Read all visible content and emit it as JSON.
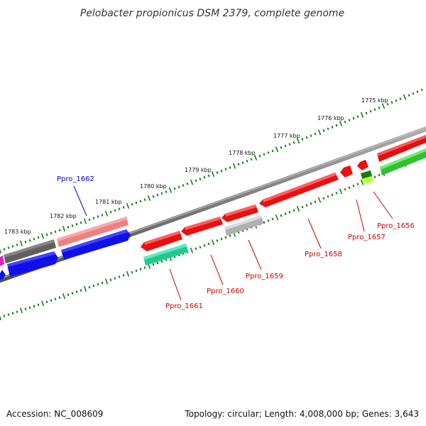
{
  "title": "Pelobacter propionicus DSM 2379, complete genome",
  "footer": {
    "accession": "Accession: NC_008609",
    "summary": "Topology: circular; Length: 4,008,000 bp; Genes: 3,643"
  },
  "colors": {
    "backbone": "#808080",
    "ruler_tick": "#1a7a1a",
    "gene_red": "#ff1010",
    "gene_blue": "#1010e8",
    "gene_pink": "#f08080",
    "gene_gray": "#c0c0c0",
    "gene_darkgray": "#606060",
    "gene_green": "#30c030",
    "gene_teal": "#30e8a0",
    "gene_magenta": "#e020c0",
    "label_red": "#cc0000",
    "label_blue": "#0000cc"
  },
  "ruler": {
    "unit": "kbp",
    "tick_labels": [
      "1775 kbp",
      "1776 kbp",
      "1777 kbp",
      "1778 kbp",
      "1779 kbp",
      "1780 kbp",
      "1781 kbp",
      "1782 kbp",
      "1783 kbp"
    ]
  },
  "gene_labels": [
    {
      "id": "ppro_1656",
      "text": "Ppro_1656",
      "color": "label_red"
    },
    {
      "id": "ppro_1657",
      "text": "Ppro_1657",
      "color": "label_red"
    },
    {
      "id": "ppro_1658",
      "text": "Ppro_1658",
      "color": "label_red"
    },
    {
      "id": "ppro_1659",
      "text": "Ppro_1659",
      "color": "label_red"
    },
    {
      "id": "ppro_1660",
      "text": "Ppro_1660",
      "color": "label_red"
    },
    {
      "id": "ppro_1661",
      "text": "Ppro_1661",
      "color": "label_red"
    },
    {
      "id": "ppro_1662",
      "text": "Ppro_1662",
      "color": "label_blue"
    }
  ]
}
